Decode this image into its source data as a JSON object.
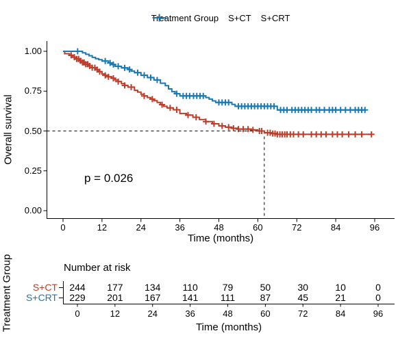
{
  "legend": {
    "title": "Treatment Group",
    "entries": [
      {
        "label": "S+CT",
        "color": "#BC3C29"
      },
      {
        "label": "S+CRT",
        "color": "#1878B4"
      }
    ]
  },
  "main_plot": {
    "ylabel": "Overall survival",
    "xlabel": "Time (months)",
    "yticks": [
      "0.00",
      "0.25",
      "0.50",
      "0.75",
      "1.00"
    ],
    "xticks": [
      0,
      12,
      24,
      36,
      48,
      60,
      72,
      84,
      96
    ],
    "pvalue": "p = 0.026"
  },
  "chart_data": {
    "type": "line",
    "subtype": "kaplan-meier-step",
    "title": "",
    "xlabel": "Time (months)",
    "ylabel": "Overall survival",
    "xlim": [
      0,
      96
    ],
    "ylim": [
      0,
      1
    ],
    "grid": false,
    "legend_position": "top",
    "reference_lines": {
      "median_survival_probability": 0.5,
      "median_time_months": 62
    },
    "series": [
      {
        "name": "S+CT",
        "color": "#BC3C29",
        "steps": [
          [
            0,
            1.0
          ],
          [
            0.5,
            0.985
          ],
          [
            2,
            0.975
          ],
          [
            3,
            0.963
          ],
          [
            4,
            0.952
          ],
          [
            5,
            0.94
          ],
          [
            6,
            0.93
          ],
          [
            7,
            0.919
          ],
          [
            8,
            0.908
          ],
          [
            9,
            0.897
          ],
          [
            10,
            0.885
          ],
          [
            11,
            0.872
          ],
          [
            12,
            0.858
          ],
          [
            13,
            0.849
          ],
          [
            14,
            0.84
          ],
          [
            15,
            0.831
          ],
          [
            16,
            0.82
          ],
          [
            17,
            0.81
          ],
          [
            18,
            0.797
          ],
          [
            19,
            0.786
          ],
          [
            20,
            0.775
          ],
          [
            22,
            0.755
          ],
          [
            23,
            0.744
          ],
          [
            24,
            0.731
          ],
          [
            25,
            0.72
          ],
          [
            26,
            0.71
          ],
          [
            27,
            0.7
          ],
          [
            28,
            0.69
          ],
          [
            29,
            0.679
          ],
          [
            30,
            0.665
          ],
          [
            31,
            0.655
          ],
          [
            32,
            0.645
          ],
          [
            34,
            0.633
          ],
          [
            36,
            0.61
          ],
          [
            38,
            0.6
          ],
          [
            40,
            0.586
          ],
          [
            42,
            0.572
          ],
          [
            44,
            0.559
          ],
          [
            46,
            0.545
          ],
          [
            48,
            0.532
          ],
          [
            50,
            0.524
          ],
          [
            52,
            0.517
          ],
          [
            54,
            0.512
          ],
          [
            58,
            0.507
          ],
          [
            60,
            0.5
          ],
          [
            62,
            0.489
          ],
          [
            64,
            0.484
          ],
          [
            66,
            0.479
          ],
          [
            95,
            0.479
          ]
        ],
        "censor_times": [
          2.5,
          3.5,
          4.2,
          4.8,
          5.4,
          6,
          6.5,
          7,
          7.6,
          8.2,
          9,
          9.8,
          10.5,
          11.3,
          13,
          14,
          15.5,
          17,
          19,
          21,
          25,
          27.5,
          30.5,
          33,
          35,
          38.5,
          41,
          44,
          46.5,
          49,
          51,
          52.5,
          54,
          55.5,
          57,
          58.5,
          60.5,
          61.2,
          63,
          63.8,
          64.6,
          65.3,
          66,
          66.8,
          67.5,
          68.3,
          69,
          70,
          71,
          72.5,
          74,
          76.5,
          78,
          79.5,
          81,
          83,
          84.5,
          86,
          88,
          90,
          92,
          95
        ]
      },
      {
        "name": "S+CRT",
        "color": "#1878B4",
        "steps": [
          [
            0,
            1.0
          ],
          [
            6,
            0.99
          ],
          [
            7,
            0.981
          ],
          [
            8,
            0.972
          ],
          [
            9,
            0.962
          ],
          [
            10,
            0.954
          ],
          [
            11,
            0.947
          ],
          [
            12,
            0.939
          ],
          [
            14,
            0.927
          ],
          [
            15,
            0.917
          ],
          [
            16,
            0.906
          ],
          [
            18,
            0.896
          ],
          [
            20,
            0.886
          ],
          [
            21,
            0.876
          ],
          [
            22,
            0.866
          ],
          [
            24,
            0.85
          ],
          [
            26,
            0.835
          ],
          [
            28,
            0.82
          ],
          [
            30,
            0.8
          ],
          [
            31.5,
            0.784
          ],
          [
            32.5,
            0.764
          ],
          [
            33.5,
            0.747
          ],
          [
            34.5,
            0.734
          ],
          [
            36,
            0.72
          ],
          [
            44,
            0.71
          ],
          [
            45,
            0.7
          ],
          [
            46,
            0.689
          ],
          [
            47,
            0.679
          ],
          [
            52,
            0.667
          ],
          [
            53,
            0.655
          ],
          [
            66,
            0.632
          ],
          [
            93,
            0.632
          ]
        ],
        "censor_times": [
          4.5,
          13,
          14.5,
          15.5,
          17,
          19,
          20.5,
          23,
          25,
          27,
          29,
          35,
          37,
          38,
          39,
          40.2,
          41.2,
          42.2,
          43.2,
          48,
          49,
          50,
          51,
          54,
          55,
          56,
          57,
          58,
          59,
          60,
          61,
          62,
          63,
          64,
          65,
          67,
          68,
          69,
          70.5,
          71.5,
          72.5,
          73.5,
          74.5,
          75.5,
          76.5,
          78,
          79,
          80.5,
          82,
          83,
          84,
          85.5,
          87,
          88.5,
          90,
          91,
          92,
          93
        ]
      }
    ]
  },
  "risk_table": {
    "title": "Number at risk",
    "ylabel": "Treatment Group",
    "xlabel": "Time (months)",
    "times": [
      0,
      12,
      24,
      36,
      48,
      60,
      72,
      84,
      96
    ],
    "rows": [
      {
        "label": "S+CT",
        "color": "#BC3C29",
        "counts": [
          244,
          177,
          134,
          110,
          79,
          50,
          30,
          10,
          0
        ]
      },
      {
        "label": "S+CRT",
        "color": "#1878B4",
        "counts": [
          229,
          201,
          167,
          141,
          111,
          87,
          45,
          21,
          0
        ]
      }
    ]
  },
  "colors": {
    "series_red": "#BC3C29",
    "series_blue": "#1878B4",
    "axis": "#000000",
    "background": "#FFFFFF"
  }
}
